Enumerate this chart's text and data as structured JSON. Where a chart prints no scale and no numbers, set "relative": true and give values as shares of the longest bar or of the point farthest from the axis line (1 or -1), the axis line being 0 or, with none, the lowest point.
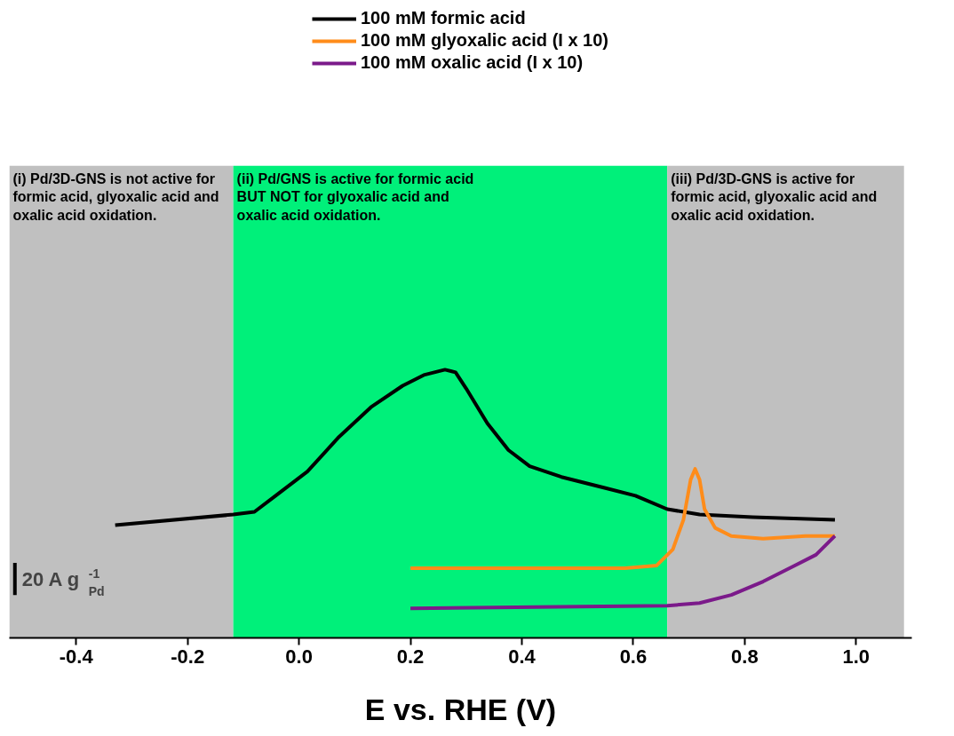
{
  "chart_data": {
    "type": "line",
    "relative": true,
    "xlabel": "E vs. RHE (V)",
    "xlim": [
      -0.52,
      1.1
    ],
    "xticks": [
      -0.4,
      -0.2,
      {
        "value": 0,
        "label": "0.0"
      },
      0.2,
      0.4,
      0.6,
      0.8,
      {
        "value": 1,
        "label": "1.0"
      }
    ],
    "series": [
      {
        "name": "100 mM formic acid",
        "color": "#000000",
        "x": [
          -0.33,
          -0.118,
          -0.08,
          -0.042,
          0.015,
          0.072,
          0.129,
          0.186,
          0.224,
          0.262,
          0.281,
          0.3,
          0.338,
          0.376,
          0.414,
          0.471,
          0.547,
          0.604,
          0.661,
          0.719,
          0.814,
          0.962
        ],
        "values": [
          0.42,
          0.46,
          0.47,
          0.53,
          0.62,
          0.75,
          0.86,
          0.94,
          0.98,
          1.0,
          0.99,
          0.93,
          0.8,
          0.7,
          0.64,
          0.6,
          0.56,
          0.53,
          0.48,
          0.46,
          0.45,
          0.44
        ]
      },
      {
        "name": "100 mM glyoxalic acid (I x 10)",
        "color": "#ff8c1a",
        "x": [
          0.2,
          0.4,
          0.585,
          0.642,
          0.671,
          0.69,
          0.703,
          0.711,
          0.719,
          0.728,
          0.747,
          0.776,
          0.833,
          0.909,
          0.962
        ],
        "values": [
          0.26,
          0.26,
          0.26,
          0.27,
          0.33,
          0.44,
          0.59,
          0.63,
          0.59,
          0.48,
          0.41,
          0.38,
          0.37,
          0.38,
          0.38
        ]
      },
      {
        "name": "100 mM oxalic acid (I x 10)",
        "color": "#7b1a8a",
        "x": [
          0.2,
          0.661,
          0.719,
          0.776,
          0.833,
          0.89,
          0.928,
          0.962
        ],
        "values": [
          0.11,
          0.12,
          0.13,
          0.16,
          0.21,
          0.27,
          0.31,
          0.38
        ]
      }
    ],
    "bands": [
      {
        "axis": "x",
        "from": -0.52,
        "to": -0.118,
        "color": "#c0c0c0",
        "label": "(i) Pd/3D-GNS is not active for\nformic acid, glyoxalic acid and\noxalic acid oxidation."
      },
      {
        "axis": "x",
        "from": -0.118,
        "to": 0.661,
        "color": "#00f07a",
        "label": "(ii) Pd/GNS is active for formic acid\nBUT NOT for glyoxalic acid and\noxalic acid oxidation."
      },
      {
        "axis": "x",
        "from": 0.661,
        "to": 1.086,
        "color": "#c0c0c0",
        "label": "(iii) Pd/3D-GNS is active for\nformic acid, glyoxalic acid and\noxalic acid oxidation."
      }
    ],
    "annotations": [
      "20 A g$^{-1}$$_{Pd}$"
    ],
    "legend": "top",
    "grid": false,
    "marker": "none",
    "line_style": "solid"
  }
}
